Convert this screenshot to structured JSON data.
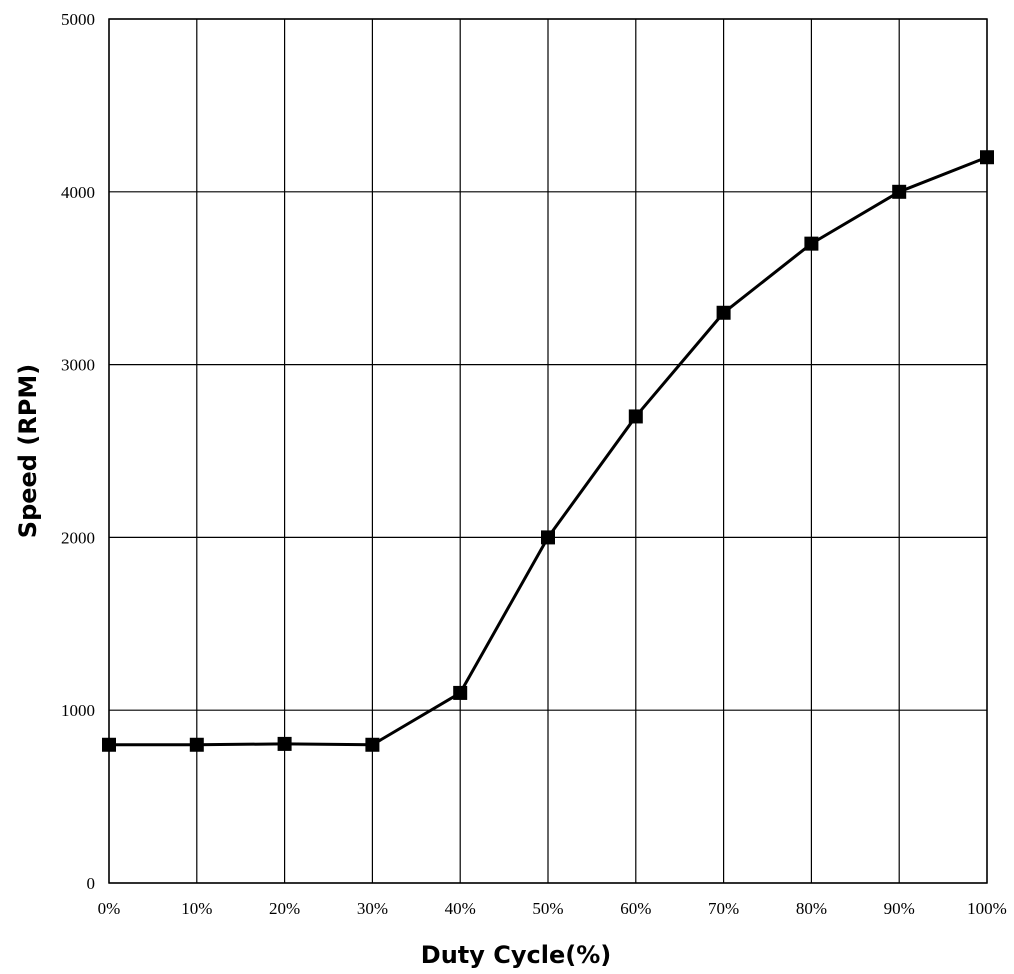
{
  "chart_data": {
    "type": "line",
    "title": "",
    "xlabel": "Duty Cycle(%)",
    "ylabel": "Speed (RPM)",
    "categories": [
      "0%",
      "10%",
      "20%",
      "30%",
      "40%",
      "50%",
      "60%",
      "70%",
      "80%",
      "90%",
      "100%"
    ],
    "x": [
      0,
      10,
      20,
      30,
      40,
      50,
      60,
      70,
      80,
      90,
      100
    ],
    "xlim": [
      0,
      100
    ],
    "ylim": [
      0,
      5000
    ],
    "yticks": [
      0,
      1000,
      2000,
      3000,
      4000,
      5000
    ],
    "ytick_labels": [
      "0",
      "1000",
      "2000",
      "3000",
      "4000",
      "5000"
    ],
    "grid": true,
    "legend": "none",
    "series": [
      {
        "values": [
          800,
          800,
          805,
          800,
          1100,
          2000,
          2700,
          3300,
          3700,
          4000,
          4200
        ],
        "color": "#000000",
        "marker": "square"
      }
    ]
  }
}
